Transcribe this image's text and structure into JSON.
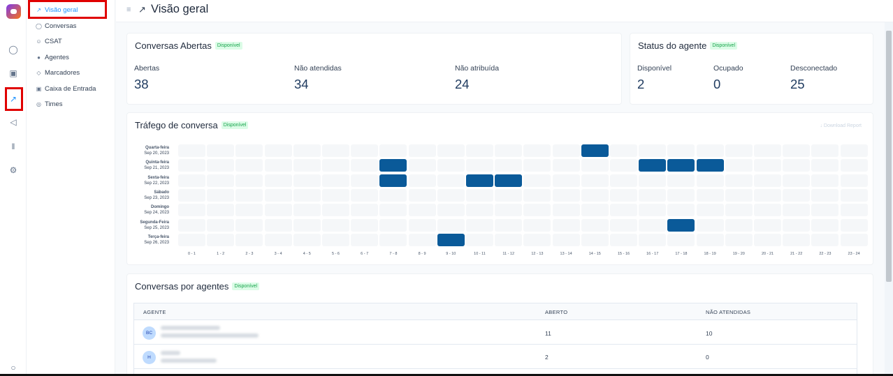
{
  "nav": {
    "rail_icons": [
      "conversations-icon",
      "contacts-icon",
      "reports-icon",
      "campaigns-icon",
      "library-icon",
      "settings-icon",
      "notifications-icon"
    ],
    "items": [
      {
        "label": "Visão geral",
        "icon": "chart-icon",
        "active": true
      },
      {
        "label": "Conversas",
        "icon": "chat-icon"
      },
      {
        "label": "CSAT",
        "icon": "smile-icon"
      },
      {
        "label": "Agentes",
        "icon": "people-icon"
      },
      {
        "label": "Marcadores",
        "icon": "tag-icon"
      },
      {
        "label": "Caixa de Entrada",
        "icon": "inbox-icon"
      },
      {
        "label": "Times",
        "icon": "team-icon"
      }
    ]
  },
  "header": {
    "title": "Visão geral"
  },
  "badge": "Disponível",
  "open_conversations": {
    "title": "Conversas Abertas",
    "metrics": [
      {
        "label": "Abertas",
        "value": "38"
      },
      {
        "label": "Não atendidas",
        "value": "34"
      },
      {
        "label": "Não atribuída",
        "value": "24"
      }
    ]
  },
  "agent_status": {
    "title": "Status do agente",
    "metrics": [
      {
        "label": "Disponível",
        "value": "2"
      },
      {
        "label": "Ocupado",
        "value": "0"
      },
      {
        "label": "Desconectado",
        "value": "25"
      }
    ]
  },
  "traffic": {
    "title": "Tráfego de conversa",
    "download_label": "Download Report",
    "days": [
      {
        "day": "Quarta-feira",
        "date": "Sep 20, 2023"
      },
      {
        "day": "Quinta-feira",
        "date": "Sep 21, 2023"
      },
      {
        "day": "Sexta-feira",
        "date": "Sep 22, 2023"
      },
      {
        "day": "Sábado",
        "date": "Sep 23, 2023"
      },
      {
        "day": "Domingo",
        "date": "Sep 24, 2023"
      },
      {
        "day": "Segunda-Feira",
        "date": "Sep 25, 2023"
      },
      {
        "day": "Terça-feira",
        "date": "Sep 26, 2023"
      }
    ],
    "hours": [
      "0 - 1",
      "1 - 2",
      "2 - 3",
      "3 - 4",
      "4 - 5",
      "5 - 6",
      "6 - 7",
      "7 - 8",
      "8 - 9",
      "9 - 10",
      "10 - 11",
      "11 - 12",
      "12 - 13",
      "13 - 14",
      "14 - 15",
      "15 - 16",
      "16 - 17",
      "17 - 18",
      "18 - 19",
      "19 - 20",
      "20 - 21",
      "21 - 22",
      "22 - 23",
      "23 - 24"
    ],
    "active_cells": [
      [
        0,
        14
      ],
      [
        1,
        7
      ],
      [
        1,
        16
      ],
      [
        1,
        17
      ],
      [
        1,
        18
      ],
      [
        2,
        7
      ],
      [
        2,
        10
      ],
      [
        2,
        11
      ],
      [
        5,
        17
      ],
      [
        6,
        9
      ]
    ]
  },
  "agents_table": {
    "title": "Conversas por agentes",
    "columns": [
      "AGENTE",
      "ABERTO",
      "NÃO ATENDIDAS"
    ],
    "rows": [
      {
        "initials": "BC",
        "open": "11",
        "unattended": "10"
      },
      {
        "initials": "H",
        "open": "2",
        "unattended": "0"
      }
    ]
  }
}
